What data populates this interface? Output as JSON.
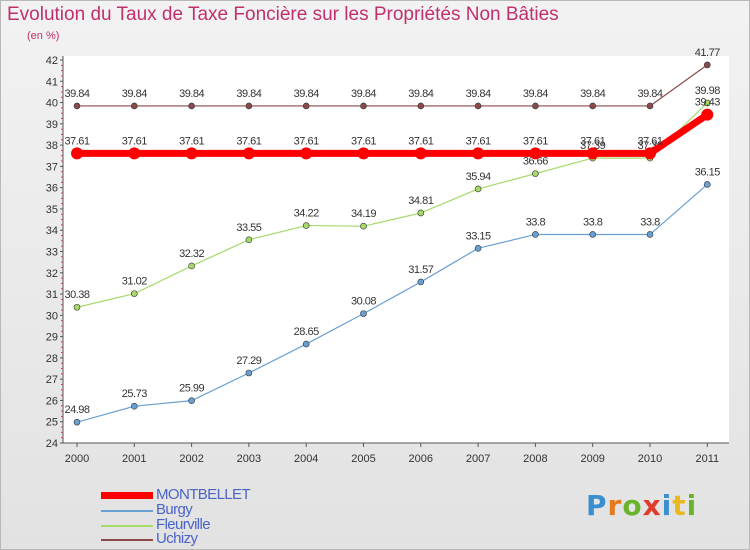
{
  "header": {
    "title": "Evolution du Taux de Taxe Foncière sur les Propriétés Non Bâties",
    "unit": "(en %)"
  },
  "logo": {
    "text": "Proxiti"
  },
  "chart_data": {
    "type": "line",
    "x": [
      "2000",
      "2001",
      "2002",
      "2003",
      "2004",
      "2005",
      "2006",
      "2007",
      "2008",
      "2009",
      "2010",
      "2011"
    ],
    "ylim": [
      24,
      42
    ],
    "yticks": [
      24,
      25,
      26,
      27,
      28,
      29,
      30,
      31,
      32,
      33,
      34,
      35,
      36,
      37,
      38,
      39,
      40,
      41,
      42
    ],
    "grid": false,
    "series": [
      {
        "name": "MONTBELLET",
        "color": "#ff0000",
        "values": [
          37.61,
          37.61,
          37.61,
          37.61,
          37.61,
          37.61,
          37.61,
          37.61,
          37.61,
          37.61,
          37.61,
          39.43
        ],
        "labels": [
          "37.61",
          "37.61",
          "37.61",
          "37.61",
          "37.61",
          "37.61",
          "37.61",
          "37.61",
          "37.61",
          "37.61",
          "37.61",
          "39.43"
        ]
      },
      {
        "name": "Burgy",
        "color": "#6a9fd4",
        "values": [
          24.98,
          25.73,
          25.99,
          27.29,
          28.65,
          30.08,
          31.57,
          33.15,
          33.8,
          33.8,
          33.8,
          36.15
        ],
        "labels": [
          "24.98",
          "25.73",
          "25.99",
          "27.29",
          "28.65",
          "30.08",
          "31.57",
          "33.15",
          "33.8",
          "33.8",
          "33.8",
          "36.15"
        ]
      },
      {
        "name": "Fleurville",
        "color": "#a6d96a",
        "values": [
          30.38,
          31.02,
          32.32,
          33.55,
          34.22,
          34.19,
          34.81,
          35.94,
          36.66,
          37.39,
          37.39,
          39.98
        ],
        "labels": [
          "30.38",
          "31.02",
          "32.32",
          "33.55",
          "34.22",
          "34.19",
          "34.81",
          "35.94",
          "36.66",
          "37.39",
          "37.39",
          "39.98"
        ]
      },
      {
        "name": "Uchizy",
        "color": "#8a4a4a",
        "values": [
          39.84,
          39.84,
          39.84,
          39.84,
          39.84,
          39.84,
          39.84,
          39.84,
          39.84,
          39.84,
          39.84,
          41.77
        ],
        "labels": [
          "39.84",
          "39.84",
          "39.84",
          "39.84",
          "39.84",
          "39.84",
          "39.84",
          "39.84",
          "39.84",
          "39.84",
          "39.84",
          "41.77"
        ]
      }
    ]
  }
}
